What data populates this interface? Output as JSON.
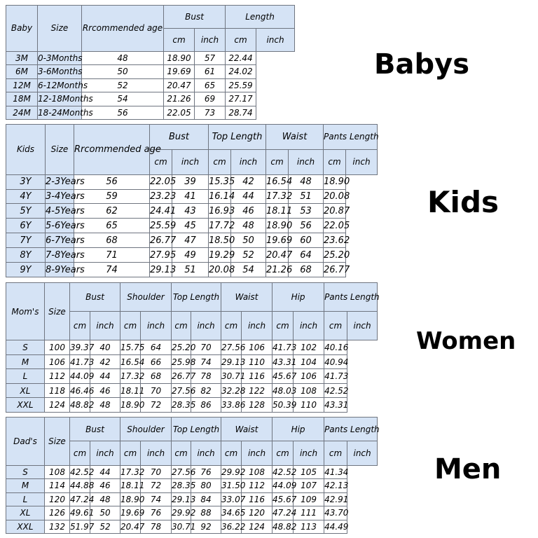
{
  "baby": {
    "heading": "Babys",
    "category": "Baby",
    "headers": {
      "size": "Size",
      "age": "Rrcommended age",
      "bust": "Bust",
      "length": "Length",
      "cm": "cm",
      "inch": "inch"
    },
    "rows": [
      {
        "size": "3M",
        "age": "0-3Months",
        "v": [
          "48",
          "18.90",
          "57",
          "22.44"
        ]
      },
      {
        "size": "6M",
        "age": "3-6Months",
        "v": [
          "50",
          "19.69",
          "61",
          "24.02"
        ]
      },
      {
        "size": "12M",
        "age": "6-12Months",
        "v": [
          "52",
          "20.47",
          "65",
          "25.59"
        ]
      },
      {
        "size": "18M",
        "age": "12-18Months",
        "v": [
          "54",
          "21.26",
          "69",
          "27.17"
        ]
      },
      {
        "size": "24M",
        "age": "18-24Months",
        "v": [
          "56",
          "22.05",
          "73",
          "28.74"
        ]
      }
    ]
  },
  "kids": {
    "heading": "Kids",
    "category": "Kids",
    "headers": {
      "size": "Size",
      "age": "Rrcommended age",
      "bust": "Bust",
      "top_length": "Top Length",
      "waist": "Waist",
      "pants_length": "Pants Length",
      "cm": "cm",
      "inch": "inch"
    },
    "rows": [
      {
        "size": "3Y",
        "age": "2-3Years",
        "v": [
          "56",
          "22.05",
          "39",
          "15.35",
          "42",
          "16.54",
          "48",
          "18.90"
        ]
      },
      {
        "size": "4Y",
        "age": "3-4Years",
        "v": [
          "59",
          "23.23",
          "41",
          "16.14",
          "44",
          "17.32",
          "51",
          "20.08"
        ]
      },
      {
        "size": "5Y",
        "age": "4-5Years",
        "v": [
          "62",
          "24.41",
          "43",
          "16.93",
          "46",
          "18.11",
          "53",
          "20.87"
        ]
      },
      {
        "size": "6Y",
        "age": "5-6Years",
        "v": [
          "65",
          "25.59",
          "45",
          "17.72",
          "48",
          "18.90",
          "56",
          "22.05"
        ]
      },
      {
        "size": "7Y",
        "age": "6-7Years",
        "v": [
          "68",
          "26.77",
          "47",
          "18.50",
          "50",
          "19.69",
          "60",
          "23.62"
        ]
      },
      {
        "size": "8Y",
        "age": "7-8Years",
        "v": [
          "71",
          "27.95",
          "49",
          "19.29",
          "52",
          "20.47",
          "64",
          "25.20"
        ]
      },
      {
        "size": "9Y",
        "age": "8-9Years",
        "v": [
          "74",
          "29.13",
          "51",
          "20.08",
          "54",
          "21.26",
          "68",
          "26.77"
        ]
      }
    ]
  },
  "women": {
    "heading": "Women",
    "category": "Mom's",
    "headers": {
      "size": "Size",
      "bust": "Bust",
      "shoulder": "Shoulder",
      "top_length": "Top Length",
      "waist": "Waist",
      "hip": "Hip",
      "pants_length": "Pants Length",
      "cm": "cm",
      "inch": "inch"
    },
    "rows": [
      {
        "size": "S",
        "v": [
          "100",
          "39.37",
          "40",
          "15.75",
          "64",
          "25.20",
          "70",
          "27.56",
          "106",
          "41.73",
          "102",
          "40.16"
        ]
      },
      {
        "size": "M",
        "v": [
          "106",
          "41.73",
          "42",
          "16.54",
          "66",
          "25.98",
          "74",
          "29.13",
          "110",
          "43.31",
          "104",
          "40.94"
        ]
      },
      {
        "size": "L",
        "v": [
          "112",
          "44.09",
          "44",
          "17.32",
          "68",
          "26.77",
          "78",
          "30.71",
          "116",
          "45.67",
          "106",
          "41.73"
        ]
      },
      {
        "size": "XL",
        "v": [
          "118",
          "46.46",
          "46",
          "18.11",
          "70",
          "27.56",
          "82",
          "32.28",
          "122",
          "48.03",
          "108",
          "42.52"
        ]
      },
      {
        "size": "XXL",
        "v": [
          "124",
          "48.82",
          "48",
          "18.90",
          "72",
          "28.35",
          "86",
          "33.86",
          "128",
          "50.39",
          "110",
          "43.31"
        ]
      }
    ]
  },
  "men": {
    "heading": "Men",
    "category": "Dad's",
    "headers": {
      "size": "Size",
      "bust": "Bust",
      "shoulder": "Shoulder",
      "top_length": "Top Length",
      "waist": "Waist",
      "hip": "Hip",
      "pants_length": "Pants Length",
      "cm": "cm",
      "inch": "inch"
    },
    "rows": [
      {
        "size": "S",
        "v": [
          "108",
          "42.52",
          "44",
          "17.32",
          "70",
          "27.56",
          "76",
          "29.92",
          "108",
          "42.52",
          "105",
          "41.34"
        ]
      },
      {
        "size": "M",
        "v": [
          "114",
          "44.88",
          "46",
          "18.11",
          "72",
          "28.35",
          "80",
          "31.50",
          "112",
          "44.09",
          "107",
          "42.13"
        ]
      },
      {
        "size": "L",
        "v": [
          "120",
          "47.24",
          "48",
          "18.90",
          "74",
          "29.13",
          "84",
          "33.07",
          "116",
          "45.67",
          "109",
          "42.91"
        ]
      },
      {
        "size": "XL",
        "v": [
          "126",
          "49.61",
          "50",
          "19.69",
          "76",
          "29.92",
          "88",
          "34.65",
          "120",
          "47.24",
          "111",
          "43.70"
        ]
      },
      {
        "size": "XXL",
        "v": [
          "132",
          "51.97",
          "52",
          "20.47",
          "78",
          "30.71",
          "92",
          "36.22",
          "124",
          "48.82",
          "113",
          "44.49"
        ]
      }
    ]
  },
  "colors": {
    "header_fill": "#d5e3f5",
    "border": "#6f7580",
    "background": "#ffffff"
  }
}
